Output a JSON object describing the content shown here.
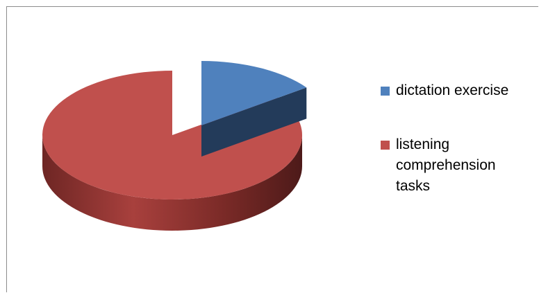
{
  "chart_data": {
    "type": "pie",
    "style": "3d-exploded",
    "title": "",
    "slices": [
      {
        "label": "dictation exercise",
        "value": 15,
        "color": "#4F81BD"
      },
      {
        "label": "listening comprehension tasks",
        "value": 85,
        "color": "#C0504D"
      }
    ],
    "legend": {
      "position": "right"
    }
  }
}
